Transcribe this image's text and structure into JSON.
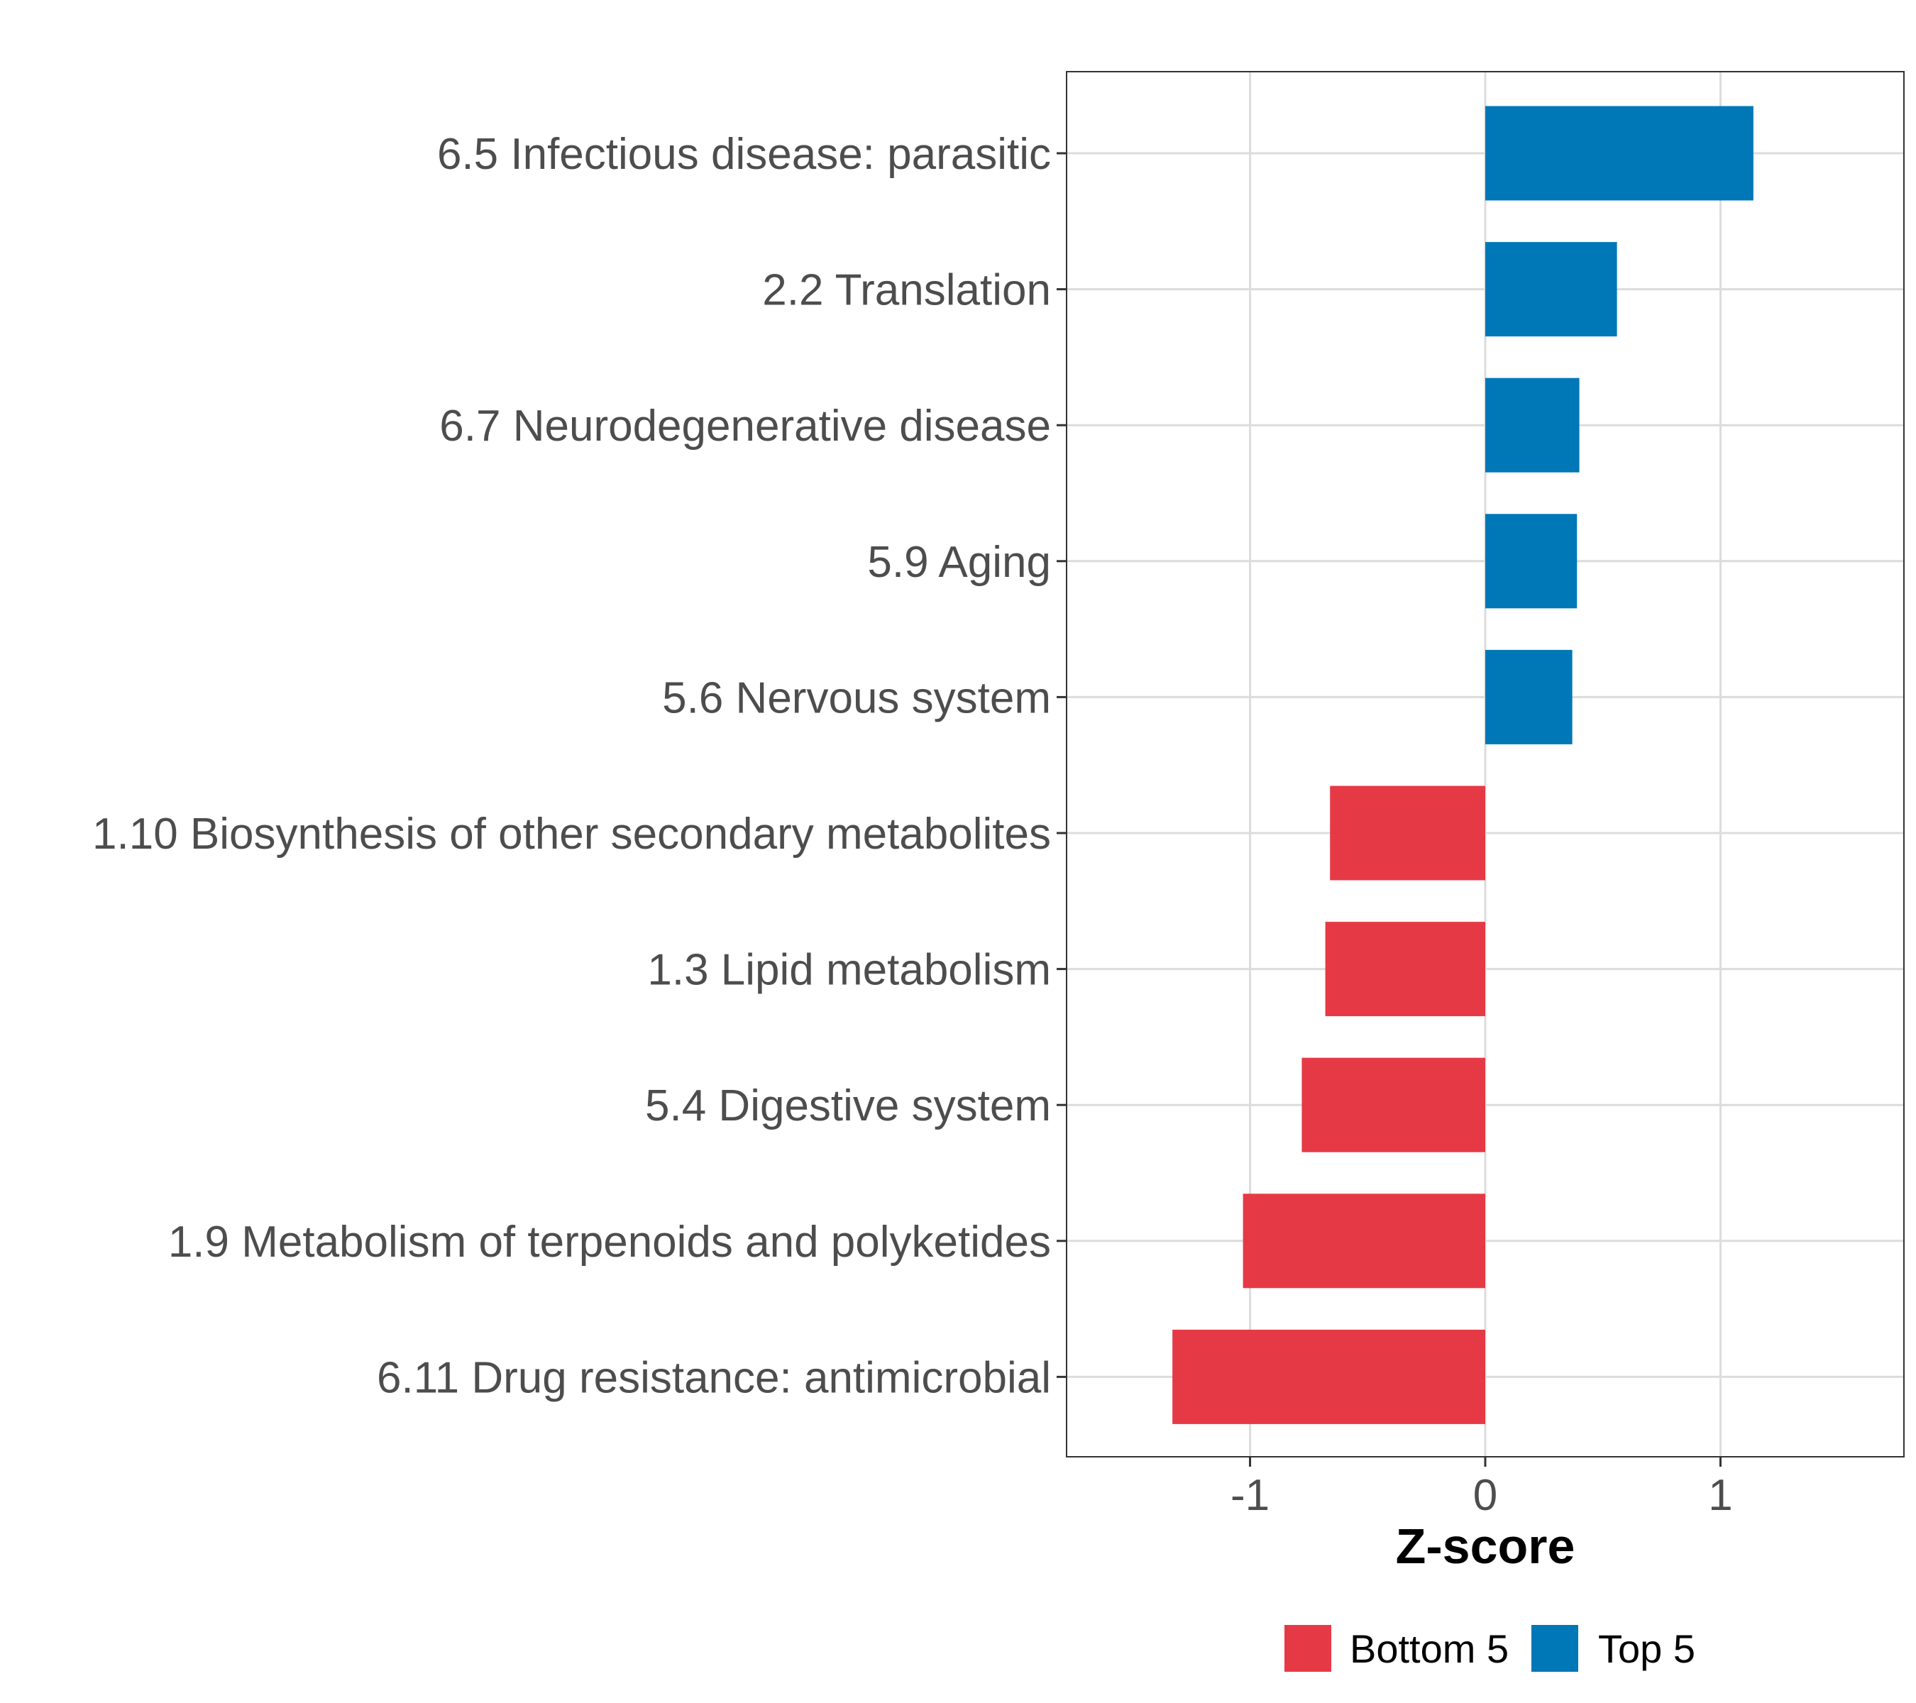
{
  "chart_data": {
    "type": "bar",
    "orientation": "horizontal",
    "title": "",
    "xlabel": "Z-score",
    "ylabel": "",
    "xlim": [
      -1.78,
      1.78
    ],
    "xticks": [
      -1,
      0,
      1
    ],
    "grid": true,
    "legend_position": "bottom",
    "categories": [
      "6.5 Infectious disease: parasitic",
      "2.2 Translation",
      "6.7 Neurodegenerative disease",
      "5.9 Aging",
      "5.6 Nervous system",
      "1.10 Biosynthesis of other secondary metabolites",
      "1.3 Lipid metabolism",
      "5.4 Digestive system",
      "1.9 Metabolism of terpenoids and polyketides",
      "6.11 Drug resistance: antimicrobial"
    ],
    "values": [
      1.14,
      0.56,
      0.4,
      0.39,
      0.37,
      -0.66,
      -0.68,
      -0.78,
      -1.03,
      -1.33
    ],
    "groups": [
      "Top 5",
      "Top 5",
      "Top 5",
      "Top 5",
      "Top 5",
      "Bottom 5",
      "Bottom 5",
      "Bottom 5",
      "Bottom 5",
      "Bottom 5"
    ],
    "legend": [
      {
        "name": "Bottom 5",
        "color": "#E63946"
      },
      {
        "name": "Top 5",
        "color": "#0077B6"
      }
    ]
  },
  "colors": {
    "Top 5": "#0077B6",
    "Bottom 5": "#E63946",
    "grid": "#dcdcdc",
    "panel_border": "#333333",
    "text": "#4d4d4d"
  }
}
